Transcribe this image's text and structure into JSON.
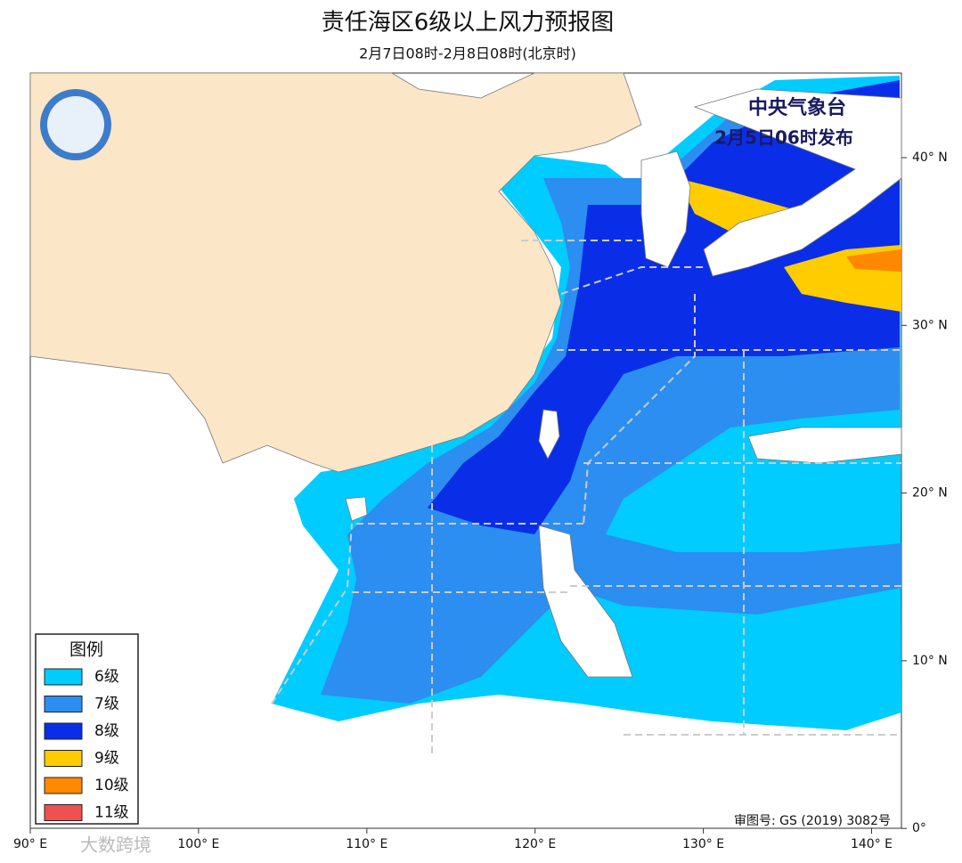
{
  "header": {
    "title": "责任海区6级以上风力预报图",
    "subtitle": "2月7日08时-2月8日08时(北京时)"
  },
  "issuer": {
    "name": "中央气象台",
    "time": "2月5日06时发布"
  },
  "legend": {
    "title": "图例",
    "items": [
      {
        "label": "6级",
        "color": "#00ccff"
      },
      {
        "label": "7级",
        "color": "#2b8ef0"
      },
      {
        "label": "8级",
        "color": "#0a2ee8"
      },
      {
        "label": "9级",
        "color": "#ffcc00"
      },
      {
        "label": "10级",
        "color": "#ff8800"
      },
      {
        "label": "11级",
        "color": "#f05050"
      }
    ]
  },
  "axes": {
    "lat_labels": [
      "40° N",
      "30° N",
      "20° N",
      "10° N",
      "0°"
    ],
    "lon_labels": [
      "90° E",
      "100° E",
      "110° E",
      "120° E",
      "130° E",
      "140° E"
    ]
  },
  "review_number": "审图号: GS (2019) 3082号",
  "watermark": "大数跨境"
}
